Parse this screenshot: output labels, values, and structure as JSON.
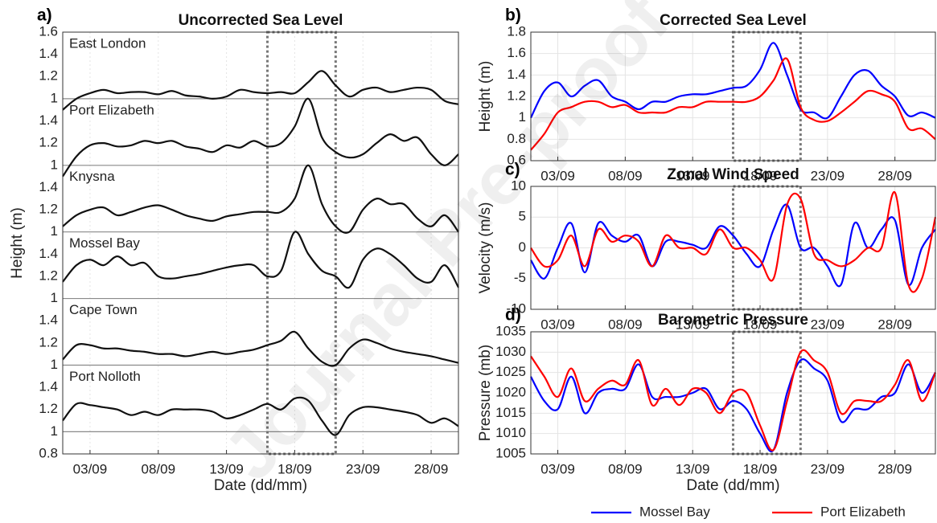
{
  "watermark": "Journal Pre-proof",
  "chart_data": [
    {
      "type": "stacked-line",
      "label": "a)",
      "title": "Uncorrected Sea Level",
      "ylabel": "Height (m)",
      "xlabel": "Date (dd/mm)",
      "x": [
        "01/09",
        "02/09",
        "03/09",
        "04/09",
        "05/09",
        "06/09",
        "07/09",
        "08/09",
        "09/09",
        "10/09",
        "11/09",
        "12/09",
        "13/09",
        "14/09",
        "15/09",
        "16/09",
        "17/09",
        "18/09",
        "19/09",
        "20/09",
        "21/09",
        "22/09",
        "23/09",
        "24/09",
        "25/09",
        "26/09",
        "27/09",
        "28/09",
        "29/09",
        "30/09"
      ],
      "xticks": [
        "03/09",
        "08/09",
        "13/09",
        "18/09",
        "23/09",
        "28/09"
      ],
      "grid": true,
      "reference": 1,
      "highlight": [
        "16/09",
        "21/09"
      ],
      "series": [
        {
          "name": "East London",
          "color": "#111111",
          "ylim": [
            0.8,
            1.6
          ],
          "yticks": [
            1,
            1.2,
            1.4,
            1.6
          ],
          "values": [
            0.9,
            1.0,
            1.05,
            1.08,
            1.05,
            1.06,
            1.06,
            1.04,
            1.07,
            1.03,
            1.02,
            1.0,
            1.02,
            1.08,
            1.06,
            1.05,
            1.06,
            1.05,
            1.15,
            1.25,
            1.12,
            1.02,
            1.08,
            1.1,
            1.06,
            1.08,
            1.1,
            1.08,
            0.98,
            0.95
          ]
        },
        {
          "name": "Port Elizabeth",
          "color": "#111111",
          "ylim": [
            0.8,
            1.4
          ],
          "yticks": [
            1,
            1.2,
            1.4
          ],
          "values": [
            0.9,
            1.08,
            1.18,
            1.2,
            1.17,
            1.18,
            1.22,
            1.2,
            1.22,
            1.17,
            1.15,
            1.12,
            1.18,
            1.16,
            1.22,
            1.17,
            1.2,
            1.35,
            1.6,
            1.25,
            1.12,
            1.07,
            1.1,
            1.2,
            1.28,
            1.22,
            1.25,
            1.1,
            1.0,
            1.1
          ]
        },
        {
          "name": "Knysna",
          "color": "#111111",
          "ylim": [
            0.8,
            1.4
          ],
          "yticks": [
            1,
            1.2,
            1.4
          ],
          "values": [
            1.05,
            1.15,
            1.2,
            1.22,
            1.15,
            1.18,
            1.22,
            1.24,
            1.2,
            1.15,
            1.12,
            1.1,
            1.14,
            1.16,
            1.18,
            1.18,
            1.18,
            1.3,
            1.6,
            1.25,
            1.05,
            1.0,
            1.2,
            1.3,
            1.25,
            1.25,
            1.12,
            1.05,
            1.15,
            1.0
          ]
        },
        {
          "name": "Mossel Bay",
          "color": "#111111",
          "ylim": [
            0.8,
            1.4
          ],
          "yticks": [
            1,
            1.2,
            1.4
          ],
          "values": [
            1.15,
            1.3,
            1.35,
            1.3,
            1.38,
            1.3,
            1.32,
            1.2,
            1.18,
            1.2,
            1.22,
            1.25,
            1.28,
            1.3,
            1.3,
            1.2,
            1.25,
            1.6,
            1.4,
            1.25,
            1.2,
            1.1,
            1.35,
            1.45,
            1.4,
            1.3,
            1.18,
            1.15,
            1.3,
            1.1
          ]
        },
        {
          "name": "Cape Town",
          "color": "#111111",
          "ylim": [
            0.8,
            1.4
          ],
          "yticks": [
            1,
            1.2,
            1.4
          ],
          "values": [
            1.05,
            1.18,
            1.18,
            1.15,
            1.15,
            1.13,
            1.12,
            1.1,
            1.1,
            1.08,
            1.1,
            1.12,
            1.1,
            1.12,
            1.14,
            1.18,
            1.22,
            1.3,
            1.15,
            1.03,
            1.0,
            1.15,
            1.23,
            1.2,
            1.15,
            1.12,
            1.1,
            1.08,
            1.05,
            1.02
          ]
        },
        {
          "name": "Port Nolloth",
          "color": "#111111",
          "ylim": [
            0.8,
            1.4
          ],
          "yticks": [
            0.8,
            1,
            1.2,
            1.4
          ],
          "values": [
            1.1,
            1.25,
            1.24,
            1.22,
            1.2,
            1.15,
            1.18,
            1.15,
            1.2,
            1.2,
            1.2,
            1.18,
            1.12,
            1.15,
            1.2,
            1.25,
            1.2,
            1.3,
            1.28,
            1.1,
            0.97,
            1.15,
            1.22,
            1.22,
            1.2,
            1.18,
            1.15,
            1.08,
            1.12,
            1.05
          ]
        }
      ]
    },
    {
      "type": "line",
      "label": "b)",
      "title": "Corrected Sea Level",
      "ylabel": "Height (m)",
      "x": [
        "01/09",
        "02/09",
        "03/09",
        "04/09",
        "05/09",
        "06/09",
        "07/09",
        "08/09",
        "09/09",
        "10/09",
        "11/09",
        "12/09",
        "13/09",
        "14/09",
        "15/09",
        "16/09",
        "17/09",
        "18/09",
        "19/09",
        "20/09",
        "21/09",
        "22/09",
        "23/09",
        "24/09",
        "25/09",
        "26/09",
        "27/09",
        "28/09",
        "29/09",
        "30/09",
        "01/10"
      ],
      "xticks": [
        "03/09",
        "08/09",
        "13/09",
        "18/09",
        "23/09",
        "28/09"
      ],
      "ylim": [
        0.6,
        1.8
      ],
      "yticks": [
        0.6,
        0.8,
        1,
        1.2,
        1.4,
        1.6,
        1.8
      ],
      "grid": true,
      "highlight": [
        "16/09",
        "21/09"
      ],
      "legend": "bottom",
      "series": [
        {
          "name": "Mossel Bay",
          "color": "#0000ff",
          "values": [
            1.0,
            1.25,
            1.33,
            1.2,
            1.3,
            1.35,
            1.2,
            1.15,
            1.08,
            1.15,
            1.15,
            1.2,
            1.22,
            1.22,
            1.25,
            1.28,
            1.3,
            1.45,
            1.7,
            1.4,
            1.08,
            1.05,
            1.0,
            1.2,
            1.4,
            1.44,
            1.3,
            1.2,
            1.02,
            1.05,
            1.0
          ]
        },
        {
          "name": "Port Elizabeth",
          "color": "#ff0000",
          "values": [
            0.7,
            0.85,
            1.05,
            1.1,
            1.15,
            1.15,
            1.1,
            1.12,
            1.05,
            1.05,
            1.05,
            1.1,
            1.1,
            1.15,
            1.15,
            1.15,
            1.15,
            1.2,
            1.35,
            1.55,
            1.1,
            0.98,
            0.97,
            1.05,
            1.15,
            1.25,
            1.22,
            1.15,
            0.9,
            0.9,
            0.8
          ]
        }
      ]
    },
    {
      "type": "line",
      "label": "c)",
      "title": "Zonal Wind Speed",
      "ylabel": "Velocity (m/s)",
      "x": [
        "01/09",
        "02/09",
        "03/09",
        "04/09",
        "05/09",
        "06/09",
        "07/09",
        "08/09",
        "09/09",
        "10/09",
        "11/09",
        "12/09",
        "13/09",
        "14/09",
        "15/09",
        "16/09",
        "17/09",
        "18/09",
        "19/09",
        "20/09",
        "21/09",
        "22/09",
        "23/09",
        "24/09",
        "25/09",
        "26/09",
        "27/09",
        "28/09",
        "29/09",
        "30/09",
        "01/10"
      ],
      "xticks": [
        "03/09",
        "08/09",
        "13/09",
        "18/09",
        "23/09",
        "28/09"
      ],
      "ylim": [
        -10,
        10
      ],
      "yticks": [
        -10,
        -5,
        0,
        5,
        10
      ],
      "grid": true,
      "highlight": [
        "16/09",
        "21/09"
      ],
      "series": [
        {
          "name": "Mossel Bay",
          "color": "#0000ff",
          "values": [
            -2,
            -5,
            0,
            4,
            -4,
            4,
            2,
            1,
            2,
            -3,
            1,
            1,
            0.5,
            0,
            3.5,
            2,
            -1,
            -3,
            3,
            7,
            0,
            0,
            -3,
            -6,
            4,
            0,
            3,
            4.5,
            -6,
            0,
            3
          ]
        },
        {
          "name": "Port Elizabeth",
          "color": "#ff0000",
          "values": [
            0,
            -3,
            -2,
            2,
            -3,
            3,
            1,
            2,
            1,
            -3,
            2,
            0,
            0,
            -1,
            3,
            0,
            0,
            -2,
            -5,
            7,
            8,
            -1,
            -2,
            -3,
            -2,
            0,
            0,
            9,
            -6,
            -5,
            5
          ]
        }
      ]
    },
    {
      "type": "line",
      "label": "d)",
      "title": "Barometric Pressure",
      "ylabel": "Pressure (mb)",
      "xlabel": "Date (dd/mm)",
      "x": [
        "01/09",
        "02/09",
        "03/09",
        "04/09",
        "05/09",
        "06/09",
        "07/09",
        "08/09",
        "09/09",
        "10/09",
        "11/09",
        "12/09",
        "13/09",
        "14/09",
        "15/09",
        "16/09",
        "17/09",
        "18/09",
        "19/09",
        "20/09",
        "21/09",
        "22/09",
        "23/09",
        "24/09",
        "25/09",
        "26/09",
        "27/09",
        "28/09",
        "29/09",
        "30/09",
        "01/10"
      ],
      "xticks": [
        "03/09",
        "08/09",
        "13/09",
        "18/09",
        "23/09",
        "28/09"
      ],
      "ylim": [
        1005,
        1035
      ],
      "yticks": [
        1005,
        1010,
        1015,
        1020,
        1025,
        1030,
        1035
      ],
      "grid": true,
      "highlight": [
        "16/09",
        "21/09"
      ],
      "series": [
        {
          "name": "Mossel Bay",
          "color": "#0000ff",
          "values": [
            1024,
            1018,
            1016,
            1024,
            1015,
            1020,
            1021,
            1021,
            1027,
            1019,
            1019,
            1019,
            1020,
            1021,
            1016,
            1018,
            1016,
            1010,
            1006,
            1020,
            1028,
            1026,
            1023,
            1013,
            1016,
            1016,
            1019,
            1020,
            1027,
            1020,
            1025
          ]
        },
        {
          "name": "Port Elizabeth",
          "color": "#ff0000",
          "values": [
            1029,
            1024,
            1019,
            1026,
            1018,
            1021,
            1023,
            1022,
            1028,
            1017,
            1021,
            1017,
            1021,
            1020,
            1015,
            1020,
            1020,
            1012,
            1006,
            1018,
            1030,
            1028,
            1025,
            1015,
            1018,
            1018,
            1018,
            1022,
            1028,
            1018,
            1025
          ]
        }
      ]
    }
  ]
}
